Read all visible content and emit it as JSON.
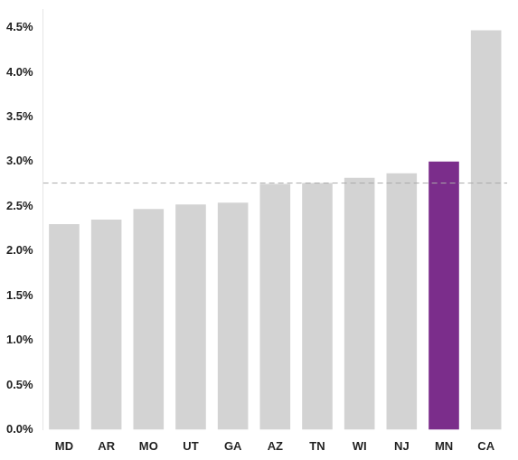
{
  "chart_data": {
    "type": "bar",
    "categories": [
      "MD",
      "AR",
      "MO",
      "UT",
      "GA",
      "AZ",
      "TN",
      "WI",
      "NJ",
      "MN",
      "CA"
    ],
    "values": [
      0.023,
      0.0235,
      0.0247,
      0.0252,
      0.0254,
      0.0275,
      0.0276,
      0.0282,
      0.0287,
      0.03,
      0.0447
    ],
    "colors": [
      "#d3d3d3",
      "#d3d3d3",
      "#d3d3d3",
      "#d3d3d3",
      "#d3d3d3",
      "#d3d3d3",
      "#d3d3d3",
      "#d3d3d3",
      "#d3d3d3",
      "#7b2d8b",
      "#d3d3d3"
    ],
    "reference_lines": [
      {
        "y": 0.0276,
        "color": "#aaaaaa",
        "line_style": "dashed"
      }
    ],
    "ylim": [
      0,
      0.047
    ],
    "yticks": [
      {
        "value": 0.0,
        "label": "0.0%"
      },
      {
        "value": 0.005,
        "label": "0.5%"
      },
      {
        "value": 0.01,
        "label": "1.0%"
      },
      {
        "value": 0.015,
        "label": "1.5%"
      },
      {
        "value": 0.02,
        "label": "2.0%"
      },
      {
        "value": 0.025,
        "label": "2.5%"
      },
      {
        "value": 0.03,
        "label": "3.0%"
      },
      {
        "value": 0.035,
        "label": "3.5%"
      },
      {
        "value": 0.04,
        "label": "4.0%"
      },
      {
        "value": 0.045,
        "label": "4.5%"
      }
    ],
    "grid": false
  }
}
